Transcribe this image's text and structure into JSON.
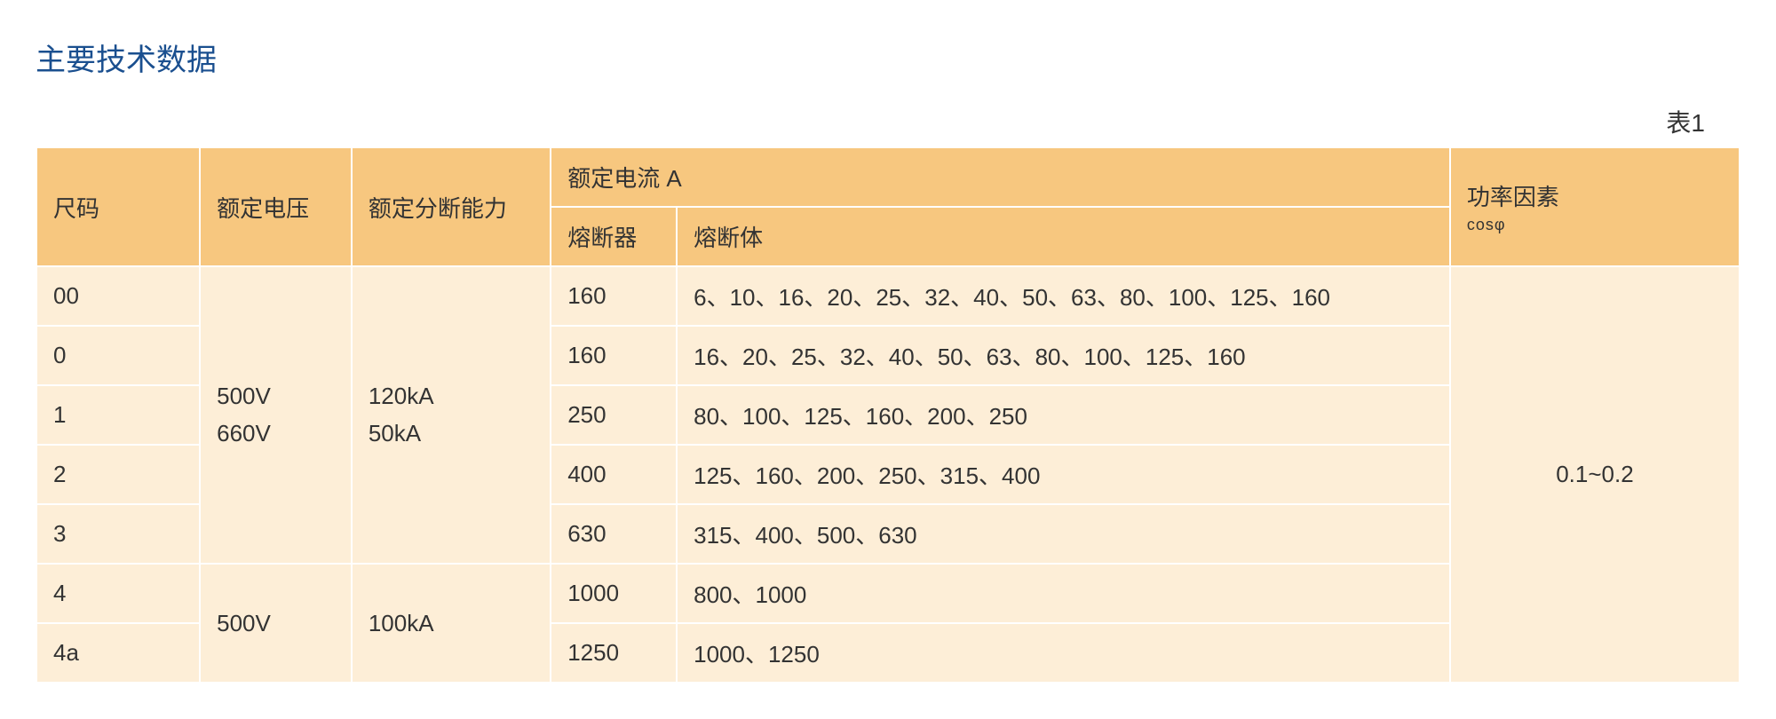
{
  "title": "主要技术数据",
  "table_label": "表1",
  "columns": {
    "size": "尺码",
    "rated_voltage": "额定电压",
    "breaking_capacity": "额定分断能力",
    "rated_current_group": "额定电流 A",
    "fuse": "熔断器",
    "fuse_body": "熔断体",
    "power_factor": "功率因素",
    "power_factor_sub": "cosφ"
  },
  "colors": {
    "title": "#1a4f8f",
    "header_bg": "#f7c77f",
    "body_bg": "#fdeed7",
    "border": "#ffffff",
    "text": "#333333",
    "page_bg": "#ffffff"
  },
  "fonts": {
    "title_size": 34,
    "header_size": 26,
    "body_size": 26,
    "sub_size": 18
  },
  "column_widths_pct": [
    9.6,
    8.9,
    11.7,
    7.4,
    45.4,
    17.0
  ],
  "merged": {
    "voltage_block1": {
      "line1": "500V",
      "line2": "660V"
    },
    "breaking_block1": {
      "line1": "120kA",
      "line2": "50kA"
    },
    "voltage_block2": "500V",
    "breaking_block2": "100kA",
    "power_factor_value": "0.1~0.2"
  },
  "rows": [
    {
      "size": "00",
      "fuse": "160",
      "fuse_body": "6、10、16、20、25、32、40、50、63、80、100、125、160"
    },
    {
      "size": "0",
      "fuse": "160",
      "fuse_body": "16、20、25、32、40、50、63、80、100、125、160"
    },
    {
      "size": "1",
      "fuse": "250",
      "fuse_body": "80、100、125、160、200、250"
    },
    {
      "size": "2",
      "fuse": "400",
      "fuse_body": "125、160、200、250、315、400"
    },
    {
      "size": "3",
      "fuse": "630",
      "fuse_body": "315、400、500、630"
    },
    {
      "size": "4",
      "fuse": "1000",
      "fuse_body": "800、1000"
    },
    {
      "size": "4a",
      "fuse": "1250",
      "fuse_body": "1000、1250"
    }
  ]
}
